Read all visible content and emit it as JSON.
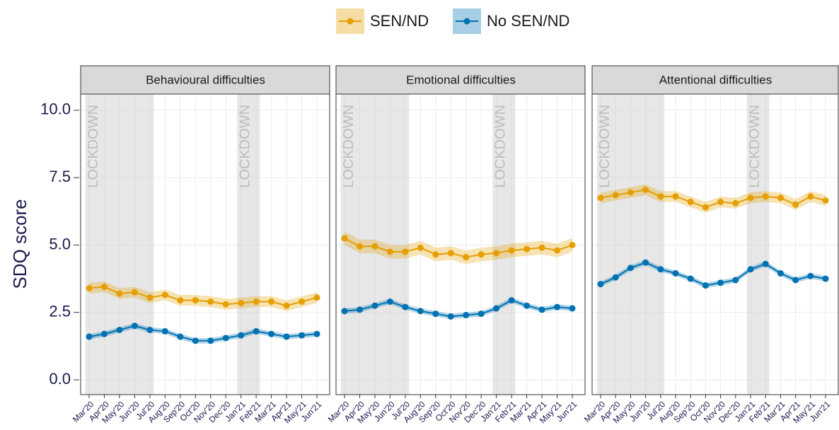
{
  "chart_data": {
    "type": "line",
    "ylabel": "SDQ score",
    "ylim": [
      -0.55,
      10.6
    ],
    "yticks": [
      {
        "value": 0,
        "label": "0.0"
      },
      {
        "value": 2.5,
        "label": "2.5"
      },
      {
        "value": 5,
        "label": "5.0"
      },
      {
        "value": 7.5,
        "label": "7.5"
      },
      {
        "value": 10,
        "label": "10.0"
      }
    ],
    "grid": true,
    "categories": [
      "Mar'20",
      "Apr'20",
      "May'20",
      "Jun'20",
      "Jul'20",
      "Aug'20",
      "Sep'20",
      "Oct'20",
      "Nov'20",
      "Dec'20",
      "Jan'21",
      "Feb'21",
      "Mar'21",
      "Apr'21",
      "May'21",
      "Jun'21"
    ],
    "series": [
      {
        "name": "SEN/ND",
        "color": "#E69F00"
      },
      {
        "name": "No SEN/ND",
        "color": "#0072B2"
      }
    ],
    "shading_label": "LOCKDOWN",
    "shading": [
      {
        "start": "Mar'20",
        "end": "Jul'20"
      },
      {
        "start": "Jan'21",
        "end": "Feb'21"
      }
    ],
    "facets": [
      {
        "title": "Behavioural difficulties",
        "series": [
          {
            "values": [
              3.4,
              3.45,
              3.2,
              3.25,
              3.05,
              3.15,
              2.95,
              2.95,
              2.9,
              2.8,
              2.85,
              2.9,
              2.9,
              2.75,
              2.9,
              3.05
            ],
            "error": 0.2
          },
          {
            "values": [
              1.6,
              1.7,
              1.85,
              2.0,
              1.85,
              1.8,
              1.6,
              1.45,
              1.45,
              1.55,
              1.65,
              1.8,
              1.7,
              1.6,
              1.65,
              1.7
            ],
            "error": 0.1
          }
        ]
      },
      {
        "title": "Emotional difficulties",
        "series": [
          {
            "values": [
              5.25,
              4.95,
              4.95,
              4.75,
              4.75,
              4.9,
              4.65,
              4.7,
              4.55,
              4.65,
              4.7,
              4.8,
              4.85,
              4.9,
              4.8,
              5.0
            ],
            "error": 0.25
          },
          {
            "values": [
              2.55,
              2.6,
              2.75,
              2.9,
              2.7,
              2.55,
              2.45,
              2.35,
              2.4,
              2.45,
              2.65,
              2.95,
              2.75,
              2.6,
              2.7,
              2.65
            ],
            "error": 0.1
          }
        ]
      },
      {
        "title": "Attentional difficulties",
        "series": [
          {
            "values": [
              6.75,
              6.85,
              6.95,
              7.05,
              6.8,
              6.8,
              6.6,
              6.4,
              6.6,
              6.55,
              6.75,
              6.8,
              6.75,
              6.5,
              6.8,
              6.65
            ],
            "error": 0.2
          },
          {
            "values": [
              3.55,
              3.8,
              4.15,
              4.35,
              4.1,
              3.95,
              3.75,
              3.5,
              3.6,
              3.7,
              4.1,
              4.3,
              3.95,
              3.7,
              3.85,
              3.75
            ],
            "error": 0.1
          }
        ]
      }
    ]
  }
}
